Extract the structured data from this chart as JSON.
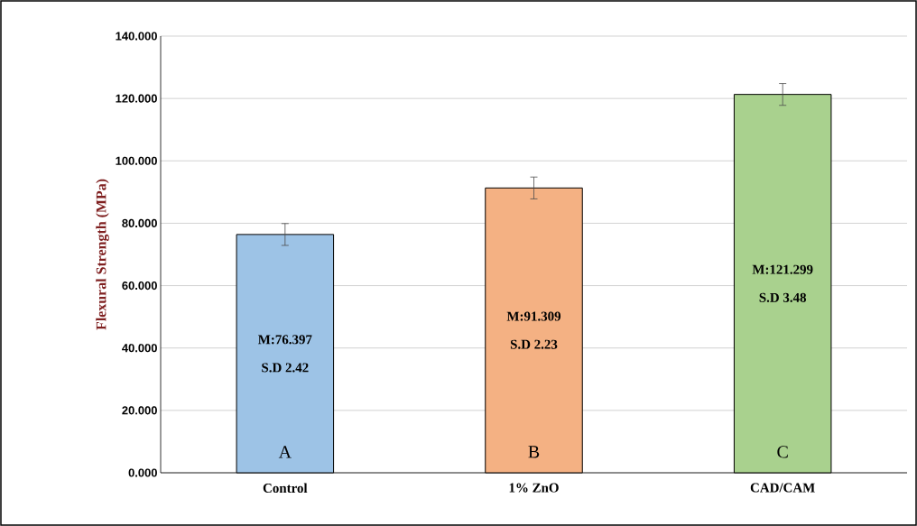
{
  "chart_data": {
    "type": "bar",
    "ylabel": "Flexural Strength (MPa)",
    "categories": [
      "Control",
      "1% ZnO",
      "CAD/CAM"
    ],
    "values": [
      76.397,
      91.309,
      121.299
    ],
    "colors": [
      "#9dc3e6",
      "#f4b183",
      "#a9d18e"
    ],
    "errors": [
      3.5,
      3.5,
      3.5
    ],
    "ylim": [
      0,
      140
    ],
    "yticks": [
      {
        "value": 0,
        "label": "0.000"
      },
      {
        "value": 20,
        "label": "20.000"
      },
      {
        "value": 40,
        "label": "40.000"
      },
      {
        "value": 60,
        "label": "60.000"
      },
      {
        "value": 80,
        "label": "80.000"
      },
      {
        "value": 100,
        "label": "100.000"
      },
      {
        "value": 120,
        "label": "120.000"
      },
      {
        "value": 140,
        "label": "140.000"
      }
    ],
    "grid": "y",
    "annotations": [
      "M:76.397",
      "S.D 2.42",
      "M:91.309",
      "S.D 2.23",
      "M:121.299",
      "S.D 3.48",
      "A",
      "B",
      "C"
    ]
  }
}
